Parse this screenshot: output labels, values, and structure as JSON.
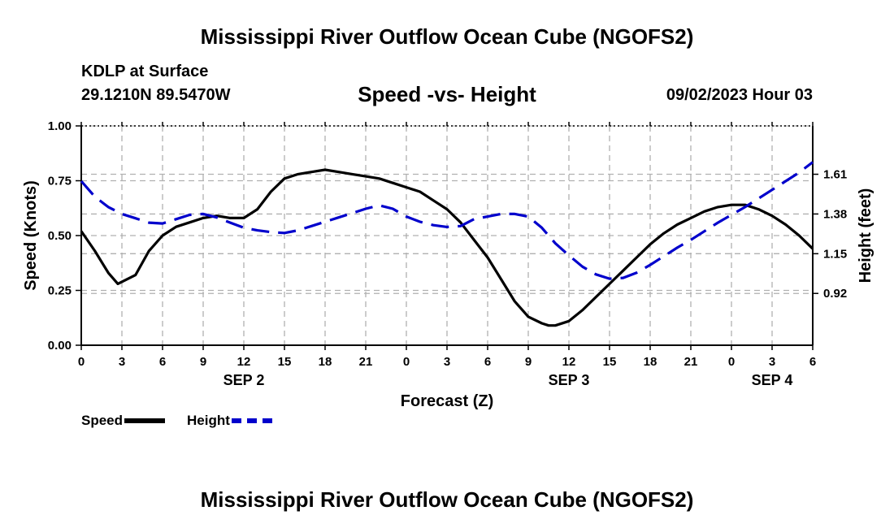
{
  "header": {
    "title": "Mississippi River Outflow Ocean Cube (NGOFS2)",
    "station": "KDLP at Surface",
    "coords": "29.1210N  89.5470W",
    "subtitle": "Speed -vs- Height",
    "datetime": "09/02/2023 Hour 03"
  },
  "footer": {
    "title": "Mississippi River Outflow Ocean Cube (NGOFS2)"
  },
  "legend": {
    "speed": "Speed",
    "height": "Height"
  },
  "colors": {
    "speed": "#000000",
    "height": "#0000cc",
    "grid": "#b0b0b0"
  },
  "chart_data": {
    "type": "line",
    "title": "Speed -vs- Height",
    "xlabel": "Forecast (Z)",
    "ylabel": "Speed (Knots)",
    "y2label": "Height (feet)",
    "xlim": [
      0,
      54
    ],
    "ylim": [
      0,
      1
    ],
    "y2lim": [
      0.62,
      1.89
    ],
    "x_ticks": [
      0,
      3,
      6,
      9,
      12,
      15,
      18,
      21,
      24,
      27,
      30,
      33,
      36,
      39,
      42,
      45,
      48,
      51,
      54
    ],
    "x_tick_labels": [
      "0",
      "3",
      "6",
      "9",
      "12",
      "15",
      "18",
      "21",
      "0",
      "3",
      "6",
      "9",
      "12",
      "15",
      "18",
      "21",
      "0",
      "3",
      "6"
    ],
    "y_ticks": [
      0,
      0.25,
      0.5,
      0.75,
      1.0
    ],
    "y_tick_labels": [
      "0.00",
      "0.25",
      "0.50",
      "0.75",
      "1.00"
    ],
    "y2_ticks": [
      0.92,
      1.15,
      1.38,
      1.61
    ],
    "y2_tick_labels": [
      "0.92",
      "1.15",
      "1.38",
      "1.61"
    ],
    "date_labels": [
      {
        "x": 12,
        "label": "SEP 2"
      },
      {
        "x": 36,
        "label": "SEP 3"
      },
      {
        "x": 51,
        "label": "SEP 4"
      }
    ],
    "grid": true,
    "series": [
      {
        "name": "Speed",
        "axis": "left",
        "style": "solid",
        "x": [
          0,
          1,
          2,
          2.7,
          4,
          5,
          6,
          7,
          8,
          9,
          10,
          11,
          12,
          13,
          14,
          15,
          16,
          17,
          18,
          19,
          20,
          21,
          22,
          23,
          24,
          25,
          26,
          27,
          28,
          29,
          30,
          31,
          32,
          33,
          34,
          34.5,
          35,
          36,
          37,
          38,
          39,
          40,
          41,
          42,
          43,
          44,
          45,
          46,
          47,
          48,
          49,
          50,
          51,
          52,
          53,
          54
        ],
        "y": [
          0.52,
          0.43,
          0.33,
          0.28,
          0.32,
          0.43,
          0.5,
          0.54,
          0.56,
          0.58,
          0.59,
          0.58,
          0.58,
          0.62,
          0.7,
          0.76,
          0.78,
          0.79,
          0.8,
          0.79,
          0.78,
          0.77,
          0.76,
          0.74,
          0.72,
          0.7,
          0.66,
          0.62,
          0.56,
          0.48,
          0.4,
          0.3,
          0.2,
          0.13,
          0.1,
          0.09,
          0.09,
          0.11,
          0.16,
          0.22,
          0.28,
          0.34,
          0.4,
          0.46,
          0.51,
          0.55,
          0.58,
          0.61,
          0.63,
          0.64,
          0.64,
          0.62,
          0.59,
          0.55,
          0.5,
          0.44
        ]
      },
      {
        "name": "Height",
        "axis": "right",
        "style": "dashed",
        "x": [
          0,
          1,
          2,
          3,
          4,
          5,
          6,
          7,
          8,
          9,
          10,
          11,
          12,
          13,
          14,
          15,
          16,
          17,
          18,
          19,
          20,
          21,
          22,
          23,
          24,
          25,
          26,
          27,
          28,
          29,
          30,
          31,
          32,
          33,
          34,
          35,
          36,
          37,
          38,
          39,
          40,
          41,
          42,
          43,
          44,
          45,
          46,
          47,
          48,
          49,
          50,
          51,
          52,
          53,
          54
        ],
        "y": [
          1.57,
          1.48,
          1.42,
          1.38,
          1.355,
          1.33,
          1.325,
          1.35,
          1.375,
          1.38,
          1.36,
          1.33,
          1.3,
          1.285,
          1.275,
          1.27,
          1.285,
          1.31,
          1.335,
          1.36,
          1.385,
          1.41,
          1.43,
          1.41,
          1.365,
          1.335,
          1.315,
          1.305,
          1.31,
          1.35,
          1.365,
          1.38,
          1.38,
          1.365,
          1.3,
          1.21,
          1.14,
          1.075,
          1.03,
          1.005,
          1.01,
          1.04,
          1.085,
          1.135,
          1.185,
          1.23,
          1.28,
          1.33,
          1.375,
          1.42,
          1.47,
          1.52,
          1.57,
          1.62,
          1.68
        ]
      }
    ]
  }
}
